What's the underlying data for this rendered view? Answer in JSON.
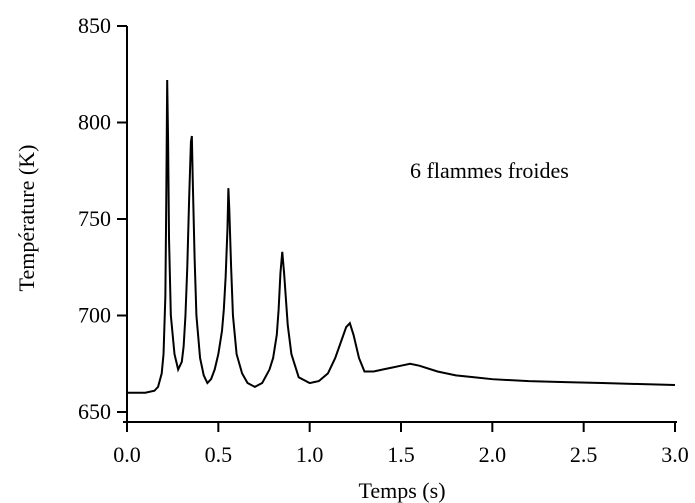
{
  "chart_data": {
    "type": "line",
    "title": "",
    "xlabel": "Temps (s)",
    "ylabel": "Température (K)",
    "xlim": [
      0.0,
      3.0
    ],
    "ylim": [
      650,
      850
    ],
    "xticks": [
      "0.0",
      "0.5",
      "1.0",
      "1.5",
      "2.0",
      "2.5",
      "3.0"
    ],
    "yticks": [
      "650",
      "700",
      "750",
      "800",
      "850"
    ],
    "annotation": "6 flammes froides",
    "grid": false,
    "line_color": "#000000",
    "series": [
      {
        "x": [
          0.0,
          0.05,
          0.1,
          0.15,
          0.17,
          0.19,
          0.2,
          0.21,
          0.215,
          0.22,
          0.225,
          0.23,
          0.24,
          0.26,
          0.28,
          0.3,
          0.31,
          0.32,
          0.33,
          0.34,
          0.35,
          0.355,
          0.36,
          0.37,
          0.38,
          0.4,
          0.42,
          0.44,
          0.46,
          0.48,
          0.5,
          0.52,
          0.53,
          0.54,
          0.55,
          0.555,
          0.56,
          0.57,
          0.58,
          0.6,
          0.63,
          0.66,
          0.7,
          0.74,
          0.78,
          0.8,
          0.82,
          0.83,
          0.84,
          0.85,
          0.86,
          0.88,
          0.9,
          0.94,
          1.0,
          1.05,
          1.1,
          1.14,
          1.17,
          1.2,
          1.22,
          1.24,
          1.27,
          1.3,
          1.35,
          1.4,
          1.45,
          1.5,
          1.55,
          1.6,
          1.7,
          1.8,
          1.9,
          2.0,
          2.2,
          2.4,
          2.6,
          2.8,
          3.0
        ],
        "y": [
          660,
          660,
          660,
          661,
          663,
          670,
          680,
          710,
          760,
          822,
          790,
          740,
          700,
          680,
          672,
          676,
          684,
          700,
          725,
          760,
          790,
          793,
          770,
          730,
          700,
          678,
          669,
          665,
          667,
          672,
          680,
          692,
          703,
          720,
          745,
          766,
          755,
          725,
          700,
          680,
          670,
          665,
          663,
          665,
          672,
          678,
          690,
          703,
          722,
          733,
          722,
          695,
          680,
          668,
          665,
          666,
          670,
          678,
          686,
          694,
          696,
          690,
          678,
          671,
          671,
          672,
          673,
          674,
          675,
          674,
          671,
          669,
          668,
          667,
          666,
          665.5,
          665,
          664.5,
          664
        ]
      }
    ]
  }
}
